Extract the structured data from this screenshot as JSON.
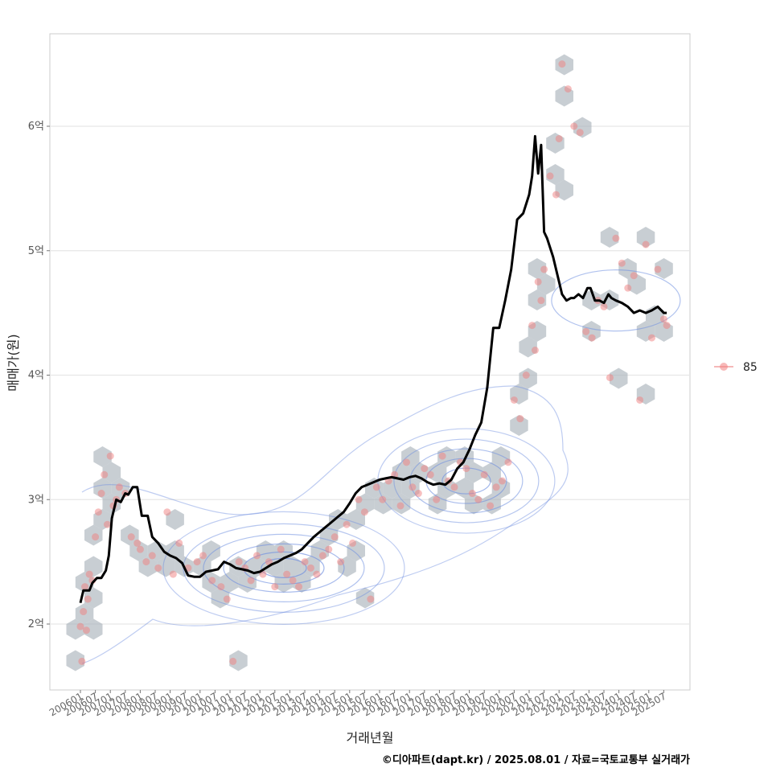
{
  "chart_data": {
    "type": "scatter",
    "xlabel": "거래년월",
    "ylabel": "매매가(원)",
    "ylim": [
      1.5,
      6.7
    ],
    "x_ticks": [
      "200601",
      "200607",
      "200701",
      "200707",
      "200801",
      "200807",
      "200901",
      "200907",
      "201001",
      "201007",
      "201101",
      "201107",
      "201201",
      "201207",
      "201301",
      "201307",
      "201401",
      "201407",
      "201501",
      "201507",
      "201601",
      "201607",
      "201701",
      "201707",
      "201801",
      "201807",
      "201901",
      "201907",
      "202001",
      "202007",
      "202101",
      "202107",
      "202201",
      "202207",
      "202301",
      "202307",
      "202401",
      "202407",
      "202501",
      "202507"
    ],
    "y_ticks": [
      {
        "value": 2,
        "label": "2억"
      },
      {
        "value": 3,
        "label": "3억"
      },
      {
        "value": 4,
        "label": "4억"
      },
      {
        "value": 5,
        "label": "5억"
      },
      {
        "value": 6,
        "label": "6억"
      }
    ],
    "legend": [
      {
        "name": "85"
      }
    ],
    "legend_position": "right",
    "grid": true,
    "colors": {
      "points": "#f08080",
      "trend": "#000000",
      "hex": "#aab4bc",
      "contour": "#6f8fe0",
      "grid": "#e6e6e6",
      "panel_border": "#cccccc"
    },
    "series": [
      {
        "name": "85",
        "kind": "points",
        "x": [
          2006.0,
          2006.05,
          2006.1,
          2006.15,
          2006.2,
          2006.25,
          2006.3,
          2006.4,
          2006.5,
          2006.6,
          2006.7,
          2006.8,
          2006.9,
          2007.0,
          2007.1,
          2007.2,
          2007.3,
          2007.5,
          2007.7,
          2007.9,
          2008.0,
          2008.2,
          2008.4,
          2008.6,
          2008.9,
          2009.1,
          2009.3,
          2009.6,
          2009.9,
          2010.1,
          2010.4,
          2010.7,
          2010.9,
          2011.1,
          2011.3,
          2011.5,
          2011.7,
          2011.9,
          2012.1,
          2012.3,
          2012.5,
          2012.7,
          2012.9,
          2013.1,
          2013.3,
          2013.5,
          2013.7,
          2013.9,
          2014.1,
          2014.3,
          2014.5,
          2014.7,
          2014.9,
          2015.1,
          2015.3,
          2015.5,
          2015.7,
          2015.9,
          2016.1,
          2016.3,
          2016.5,
          2016.7,
          2016.9,
          2017.1,
          2017.3,
          2017.5,
          2017.7,
          2017.9,
          2018.1,
          2018.3,
          2018.5,
          2018.7,
          2018.9,
          2019.1,
          2019.3,
          2019.5,
          2019.7,
          2019.9,
          2020.1,
          2020.3,
          2020.5,
          2020.7,
          2020.9,
          2021.1,
          2021.2,
          2021.3,
          2021.4,
          2021.5,
          2021.7,
          2021.9,
          2022.0,
          2022.1,
          2022.3,
          2022.5,
          2022.7,
          2022.9,
          2023.1,
          2023.3,
          2023.5,
          2023.7,
          2023.9,
          2024.1,
          2024.3,
          2024.5,
          2024.7,
          2024.9,
          2025.1,
          2025.3,
          2025.5,
          2025.6
        ],
        "y": [
          1.98,
          1.7,
          2.1,
          2.3,
          1.95,
          2.2,
          2.4,
          2.35,
          2.7,
          2.9,
          3.05,
          3.2,
          2.8,
          3.35,
          2.95,
          3.0,
          3.1,
          3.05,
          2.7,
          2.65,
          2.6,
          2.5,
          2.55,
          2.45,
          2.9,
          2.4,
          2.65,
          2.45,
          2.5,
          2.55,
          2.35,
          2.3,
          2.2,
          1.7,
          2.5,
          2.45,
          2.35,
          2.55,
          2.4,
          2.5,
          2.3,
          2.6,
          2.4,
          2.35,
          2.3,
          2.5,
          2.45,
          2.4,
          2.55,
          2.6,
          2.7,
          2.5,
          2.8,
          2.65,
          3.0,
          2.9,
          2.2,
          3.1,
          3.0,
          3.15,
          3.2,
          2.95,
          3.3,
          3.1,
          3.05,
          3.25,
          3.2,
          3.0,
          3.35,
          3.15,
          3.1,
          3.3,
          3.25,
          3.05,
          3.0,
          3.2,
          2.95,
          3.1,
          3.15,
          3.3,
          3.8,
          3.65,
          4.0,
          4.4,
          4.2,
          4.75,
          4.6,
          4.85,
          5.6,
          5.45,
          5.9,
          6.5,
          6.3,
          6.0,
          5.95,
          4.35,
          4.3,
          4.6,
          4.55,
          3.98,
          5.1,
          4.9,
          4.7,
          4.8,
          3.8,
          5.05,
          4.3,
          4.85,
          4.45,
          4.4
        ]
      },
      {
        "name": "trend",
        "kind": "line",
        "x": [
          2006.0,
          2006.1,
          2006.3,
          2006.4,
          2006.55,
          2006.7,
          2006.85,
          2006.95,
          2007.05,
          2007.2,
          2007.35,
          2007.5,
          2007.6,
          2007.75,
          2007.9,
          2008.05,
          2008.25,
          2008.4,
          2008.6,
          2008.8,
          2009.0,
          2009.2,
          2009.4,
          2009.6,
          2009.8,
          2010.0,
          2010.2,
          2010.4,
          2010.6,
          2010.8,
          2011.0,
          2011.2,
          2011.4,
          2011.6,
          2011.8,
          2012.0,
          2012.2,
          2012.4,
          2012.6,
          2012.8,
          2013.0,
          2013.2,
          2013.4,
          2013.6,
          2013.8,
          2014.0,
          2014.2,
          2014.4,
          2014.6,
          2014.8,
          2015.0,
          2015.2,
          2015.4,
          2015.6,
          2015.8,
          2016.0,
          2016.2,
          2016.4,
          2016.6,
          2016.8,
          2017.0,
          2017.2,
          2017.4,
          2017.6,
          2017.8,
          2018.0,
          2018.2,
          2018.4,
          2018.6,
          2018.8,
          2019.0,
          2019.2,
          2019.4,
          2019.6,
          2019.8,
          2020.0,
          2020.2,
          2020.4,
          2020.6,
          2020.8,
          2021.0,
          2021.1,
          2021.2,
          2021.3,
          2021.4,
          2021.5,
          2021.6,
          2021.8,
          2022.0,
          2022.1,
          2022.25,
          2022.4,
          2022.5,
          2022.65,
          2022.8,
          2022.95,
          2023.05,
          2023.2,
          2023.35,
          2023.5,
          2023.65,
          2023.75,
          2023.9,
          2024.1,
          2024.3,
          2024.5,
          2024.7,
          2024.9,
          2025.1,
          2025.3,
          2025.5,
          2025.6
        ],
        "y": [
          2.17,
          2.27,
          2.27,
          2.33,
          2.37,
          2.37,
          2.43,
          2.55,
          2.85,
          3.0,
          2.98,
          3.05,
          3.04,
          3.1,
          3.1,
          2.87,
          2.87,
          2.7,
          2.65,
          2.58,
          2.55,
          2.53,
          2.49,
          2.39,
          2.38,
          2.38,
          2.42,
          2.43,
          2.44,
          2.5,
          2.48,
          2.45,
          2.44,
          2.43,
          2.41,
          2.42,
          2.45,
          2.48,
          2.5,
          2.53,
          2.55,
          2.57,
          2.6,
          2.65,
          2.7,
          2.74,
          2.78,
          2.82,
          2.86,
          2.9,
          2.97,
          3.05,
          3.1,
          3.12,
          3.14,
          3.16,
          3.17,
          3.18,
          3.17,
          3.16,
          3.18,
          3.19,
          3.17,
          3.14,
          3.12,
          3.13,
          3.12,
          3.16,
          3.25,
          3.3,
          3.4,
          3.52,
          3.62,
          3.9,
          4.38,
          4.38,
          4.6,
          4.85,
          5.25,
          5.3,
          5.45,
          5.6,
          5.92,
          5.62,
          5.85,
          5.15,
          5.1,
          4.95,
          4.75,
          4.65,
          4.6,
          4.62,
          4.62,
          4.65,
          4.62,
          4.7,
          4.7,
          4.6,
          4.6,
          4.58,
          4.65,
          4.62,
          4.6,
          4.58,
          4.55,
          4.5,
          4.52,
          4.5,
          4.52,
          4.55,
          4.5,
          4.5
        ]
      }
    ]
  },
  "caption": "©디아파트(dapt.kr) / 2025.08.01 / 자료=국토교통부 실거래가"
}
